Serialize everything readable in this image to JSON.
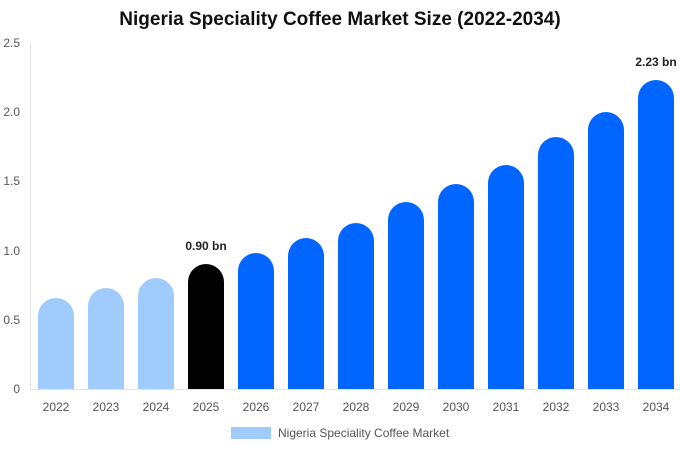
{
  "chart_data": {
    "type": "bar",
    "title": "Nigeria Speciality Coffee Market Size (2022-2034)",
    "xlabel": "",
    "ylabel": "",
    "ylim": [
      0,
      2.5
    ],
    "yticks": [
      "0",
      "0.5",
      "1.0",
      "1.5",
      "2.0",
      "2.5"
    ],
    "categories": [
      "2022",
      "2023",
      "2024",
      "2025",
      "2026",
      "2027",
      "2028",
      "2029",
      "2030",
      "2031",
      "2032",
      "2033",
      "2034"
    ],
    "series": [
      {
        "name": "Nigeria Speciality Coffee Market",
        "values": [
          0.66,
          0.73,
          0.8,
          0.9,
          0.98,
          1.09,
          1.2,
          1.35,
          1.48,
          1.62,
          1.82,
          2.0,
          2.23
        ]
      }
    ],
    "bar_colors": [
      "#a0cbfd",
      "#a0cbfd",
      "#a0cbfd",
      "#000000",
      "#0066ff",
      "#0066ff",
      "#0066ff",
      "#0066ff",
      "#0066ff",
      "#0066ff",
      "#0066ff",
      "#0066ff",
      "#0066ff"
    ],
    "annotations": [
      {
        "category": "2025",
        "label": "0.90 bn"
      },
      {
        "category": "2034",
        "label": "2.23 bn"
      }
    ],
    "legend": {
      "position": "bottom",
      "entries": [
        {
          "label": "Nigeria Speciality Coffee Market",
          "color": "#a0cbfd"
        }
      ]
    },
    "grid": false
  }
}
